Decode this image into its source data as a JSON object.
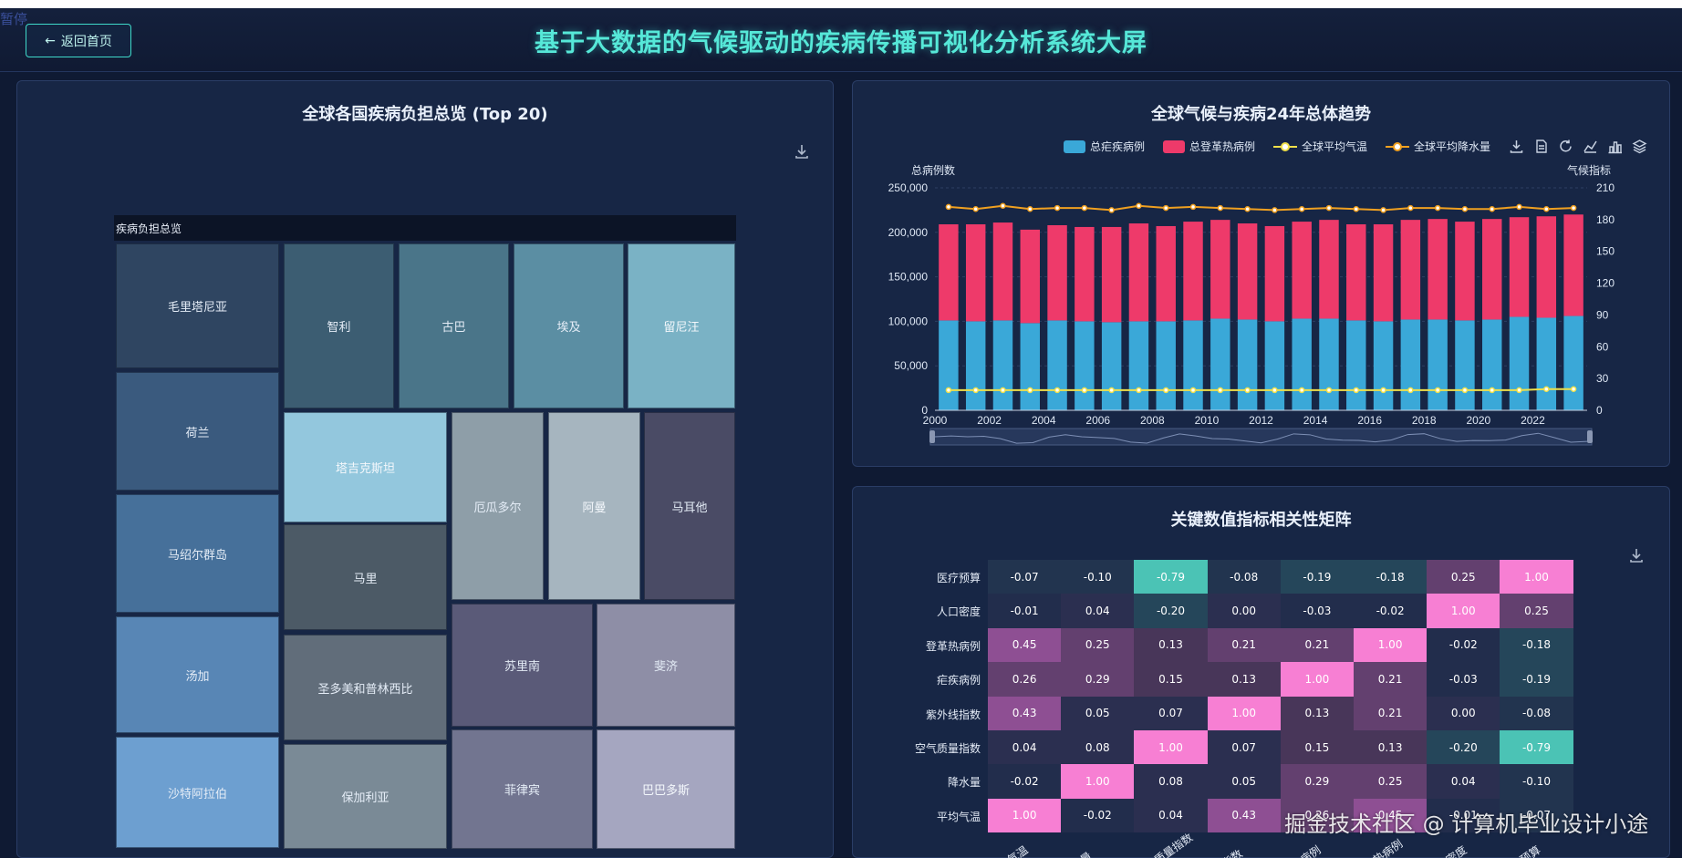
{
  "header": {
    "pause_label": "暂停",
    "back_label": "返回首页",
    "title": "基于大数据的气候驱动的疾病传播可视化分析系统大屏"
  },
  "treemap_panel": {
    "title": "全球各国疾病负担总览 (Top 20)",
    "header_label": "疾病负担总览",
    "cells": [
      "毛里塔尼亚",
      "智利",
      "古巴",
      "埃及",
      "留尼汪",
      "荷兰",
      "塔吉克斯坦",
      "厄瓜多尔",
      "阿曼",
      "马耳他",
      "马绍尔群岛",
      "马里",
      "苏里南",
      "斐济",
      "汤加",
      "圣多美和普林西比",
      "沙特阿拉伯",
      "保加利亚",
      "菲律宾",
      "巴巴多斯"
    ]
  },
  "trend_panel": {
    "title": "全球气候与疾病24年总体趋势",
    "legend": [
      "总疟疾病例",
      "总登革热病例",
      "全球平均气温",
      "全球平均降水量"
    ],
    "y_left_title": "总病例数",
    "y_right_title": "气候指标",
    "y_left_ticks": [
      "250,000",
      "200,000",
      "150,000",
      "100,000",
      "50,000",
      "0"
    ],
    "y_right_ticks": [
      "210",
      "180",
      "150",
      "120",
      "90",
      "60",
      "30",
      "0"
    ],
    "x_ticks": [
      "2000",
      "2002",
      "2004",
      "2006",
      "2008",
      "2010",
      "2012",
      "2014",
      "2016",
      "2018",
      "2020",
      "2022"
    ]
  },
  "corr_panel": {
    "title": "关键数值指标相关性矩阵",
    "row_labels": [
      "医疗预算",
      "人口密度",
      "登革热病例",
      "疟疾病例",
      "紫外线指数",
      "空气质量指数",
      "降水量",
      "平均气温"
    ],
    "col_labels": [
      "平均气温",
      "降水量",
      "空气质量指数",
      "UV指数",
      "疟疾病例",
      "登革热病例",
      "人口密度",
      "医疗预算"
    ]
  },
  "watermark": "掘金技术社区 @ 计算机毕业设计小途",
  "chart_data": [
    {
      "type": "treemap",
      "title": "全球各国疾病负担总览 (Top 20)",
      "categories": [
        "毛里塔尼亚",
        "荷兰",
        "马绍尔群岛",
        "汤加",
        "沙特阿拉伯",
        "智利",
        "古巴",
        "埃及",
        "留尼汪",
        "塔吉克斯坦",
        "马里",
        "圣多美和普林西比",
        "保加利亚",
        "厄瓜多尔",
        "阿曼",
        "马耳他",
        "苏里南",
        "斐济",
        "菲律宾",
        "巴巴多斯"
      ]
    },
    {
      "type": "bar",
      "title": "全球气候与疾病24年总体趋势",
      "x": [
        2000,
        2001,
        2002,
        2003,
        2004,
        2005,
        2006,
        2007,
        2008,
        2009,
        2010,
        2011,
        2012,
        2013,
        2014,
        2015,
        2016,
        2017,
        2018,
        2019,
        2020,
        2021,
        2022,
        2023
      ],
      "ylabel": "总病例数",
      "ylim": [
        0,
        250000
      ],
      "y2label": "气候指标",
      "y2lim": [
        0,
        210
      ],
      "stacked": true,
      "series": [
        {
          "name": "总疟疾病例",
          "type": "bar",
          "axis": "left",
          "color": "#3aa8d8",
          "values": [
            101000,
            100000,
            101000,
            98000,
            101000,
            100000,
            99000,
            100000,
            100000,
            101000,
            103000,
            102000,
            100000,
            103000,
            103000,
            101000,
            100000,
            102000,
            102000,
            101000,
            102000,
            105000,
            104000,
            106000
          ]
        },
        {
          "name": "总登革热病例",
          "type": "bar",
          "axis": "left",
          "color": "#ee3a6a",
          "values": [
            108000,
            109000,
            110000,
            105000,
            107000,
            106000,
            107000,
            110000,
            107000,
            111000,
            111000,
            108000,
            107000,
            109000,
            111000,
            108000,
            109000,
            112000,
            113000,
            111000,
            113000,
            112000,
            114000,
            114000
          ]
        },
        {
          "name": "全球平均气温",
          "type": "line",
          "axis": "right",
          "color": "#f0e04a",
          "values": [
            19,
            19,
            19,
            19,
            19,
            19,
            19,
            19,
            19,
            19,
            19,
            19,
            19,
            19,
            19,
            19,
            19,
            19,
            19,
            19,
            19,
            19,
            20,
            20
          ]
        },
        {
          "name": "全球平均降水量",
          "type": "line",
          "axis": "right",
          "color": "#f0a020",
          "values": [
            192,
            190,
            193,
            190,
            191,
            191,
            189,
            193,
            191,
            192,
            191,
            190,
            189,
            190,
            191,
            190,
            189,
            191,
            191,
            190,
            190,
            192,
            190,
            191
          ]
        }
      ],
      "legend": "top"
    },
    {
      "type": "heatmap",
      "title": "关键数值指标相关性矩阵",
      "x": [
        "平均气温",
        "降水量",
        "空气质量指数",
        "UV指数",
        "疟疾病例",
        "登革热病例",
        "人口密度",
        "医疗预算"
      ],
      "y": [
        "医疗预算",
        "人口密度",
        "登革热病例",
        "疟疾病例",
        "紫外线指数",
        "空气质量指数",
        "降水量",
        "平均气温"
      ],
      "values": [
        [
          -0.07,
          -0.1,
          -0.79,
          -0.08,
          -0.19,
          -0.18,
          0.25,
          1.0
        ],
        [
          -0.01,
          0.04,
          -0.2,
          0.0,
          -0.03,
          -0.02,
          1.0,
          0.25
        ],
        [
          0.45,
          0.25,
          0.13,
          0.21,
          0.21,
          1.0,
          -0.02,
          -0.18
        ],
        [
          0.26,
          0.29,
          0.15,
          0.13,
          1.0,
          0.21,
          -0.03,
          -0.19
        ],
        [
          0.43,
          0.05,
          0.07,
          1.0,
          0.13,
          0.21,
          0.0,
          -0.08
        ],
        [
          0.04,
          0.08,
          1.0,
          0.07,
          0.15,
          0.13,
          -0.2,
          -0.79
        ],
        [
          -0.02,
          1.0,
          0.08,
          0.05,
          0.29,
          0.25,
          0.04,
          -0.1
        ],
        [
          1.0,
          -0.02,
          0.04,
          0.43,
          0.26,
          0.45,
          -0.01,
          -0.07
        ]
      ],
      "value_labels": [
        [
          "-0.07",
          "-0.10",
          "-0.79",
          "-0.08",
          "-0.19",
          "-0.18",
          "0.25",
          "1.00"
        ],
        [
          "-0.01",
          "0.04",
          "-0.20",
          "0.00",
          "-0.03",
          "-0.02",
          "1.00",
          "0.25"
        ],
        [
          "0.45",
          "0.25",
          "0.13",
          "0.21",
          "0.21",
          "1.00",
          "-0.02",
          "-0.18"
        ],
        [
          "0.26",
          "0.29",
          "0.15",
          "0.13",
          "1.00",
          "0.21",
          "-0.03",
          "-0.19"
        ],
        [
          "0.43",
          "0.05",
          "0.07",
          "1.00",
          "0.13",
          "0.21",
          "0.00",
          "-0.08"
        ],
        [
          "0.04",
          "0.08",
          "1.00",
          "0.07",
          "0.15",
          "0.13",
          "-0.20",
          "-0.79"
        ],
        [
          "-0.02",
          "1.00",
          "0.08",
          "0.05",
          "0.29",
          "0.25",
          "0.04",
          "-0.10"
        ],
        [
          "1.00",
          "-0.02",
          "0.04",
          "0.43",
          "0.26",
          "0.45",
          "-0.01",
          "-0.07"
        ]
      ]
    }
  ]
}
